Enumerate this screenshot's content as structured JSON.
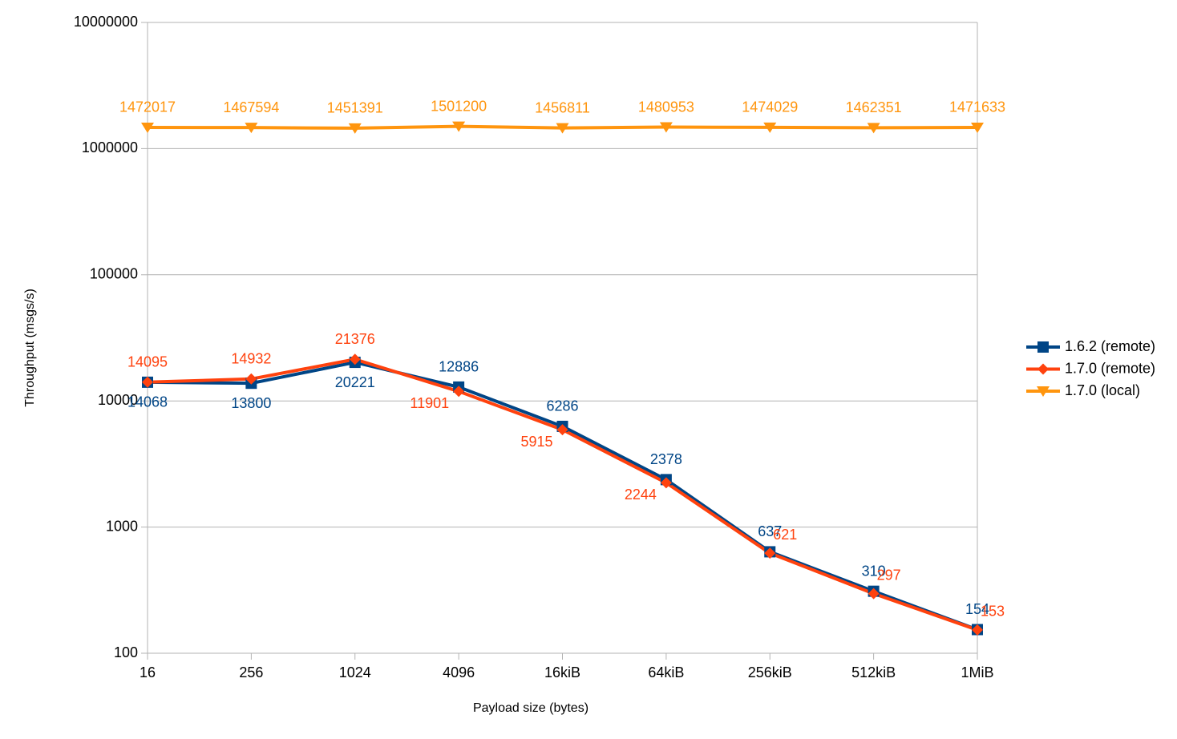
{
  "chart_data": {
    "type": "line",
    "x_label": "Payload size (bytes)",
    "y_label": "Throughput (msgs/s)",
    "categories": [
      "16",
      "256",
      "1024",
      "4096",
      "16kiB",
      "64kiB",
      "256kiB",
      "512kiB",
      "1MiB"
    ],
    "log_scale": true,
    "grid": true,
    "legend": "right",
    "ylim": [
      100,
      10000000
    ],
    "yticks": [
      100,
      1000,
      10000,
      100000,
      1000000,
      10000000
    ],
    "series": [
      {
        "name": "1.6.2 (remote)",
        "color": "#004586",
        "marker": "square",
        "values": [
          14068,
          13800,
          20221,
          12886,
          6286,
          2378,
          637,
          310,
          154
        ]
      },
      {
        "name": "1.7.0 (remote)",
        "color": "#ff420e",
        "marker": "diamond",
        "values": [
          14095,
          14932,
          21376,
          11901,
          5915,
          2244,
          621,
          297,
          153
        ]
      },
      {
        "name": "1.7.0 (local)",
        "color": "#ff950e",
        "marker": "triangle-down",
        "values": [
          1472017,
          1467594,
          1451391,
          1501200,
          1456811,
          1480953,
          1474029,
          1462351,
          1471633
        ]
      }
    ]
  }
}
